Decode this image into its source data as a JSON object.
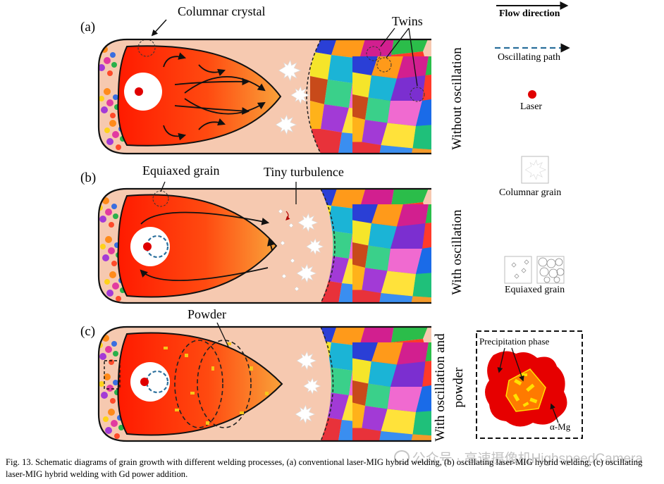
{
  "panels": [
    {
      "label": "(a)",
      "side_label": "Without oscillation"
    },
    {
      "label": "(b)",
      "side_label": "With oscillation"
    },
    {
      "label": "(c)",
      "side_label": "With oscillation and powder"
    }
  ],
  "callouts": {
    "columnar_crystal": "Columnar crystal",
    "twins": "Twins",
    "equiaxed_grain": "Equiaxed grain",
    "tiny_turbulence": "Tiny turbulence",
    "powder": "Powder"
  },
  "legend": {
    "flow_direction": "Flow direction",
    "oscillating_path": "Oscillating path",
    "laser": "Laser",
    "columnar_grain": "Columnar grain",
    "equiaxed_grain": "Equiaxed grain"
  },
  "inset": {
    "precipitation_phase": "Precipitation phase",
    "alpha_mg": "α-Mg"
  },
  "caption": "Fig. 13. Schematic diagrams of grain growth with different welding processes, (a) conventional laser-MIG hybrid welding, (b) oscillating laser-MIG hybrid welding, (c) oscillating laser-MIG hybrid welding with Gd power addition.",
  "watermark": "公众号 · 高速摄像机HighspeedCamera",
  "colors": {
    "pool_hot": "#ff1a00",
    "pool_cool": "#f9a23a",
    "mushy_zone": "#f6c9b0",
    "laser": "#e00000",
    "oscillating_path": "#2a6f9c",
    "precipitate": "#ffe100"
  }
}
